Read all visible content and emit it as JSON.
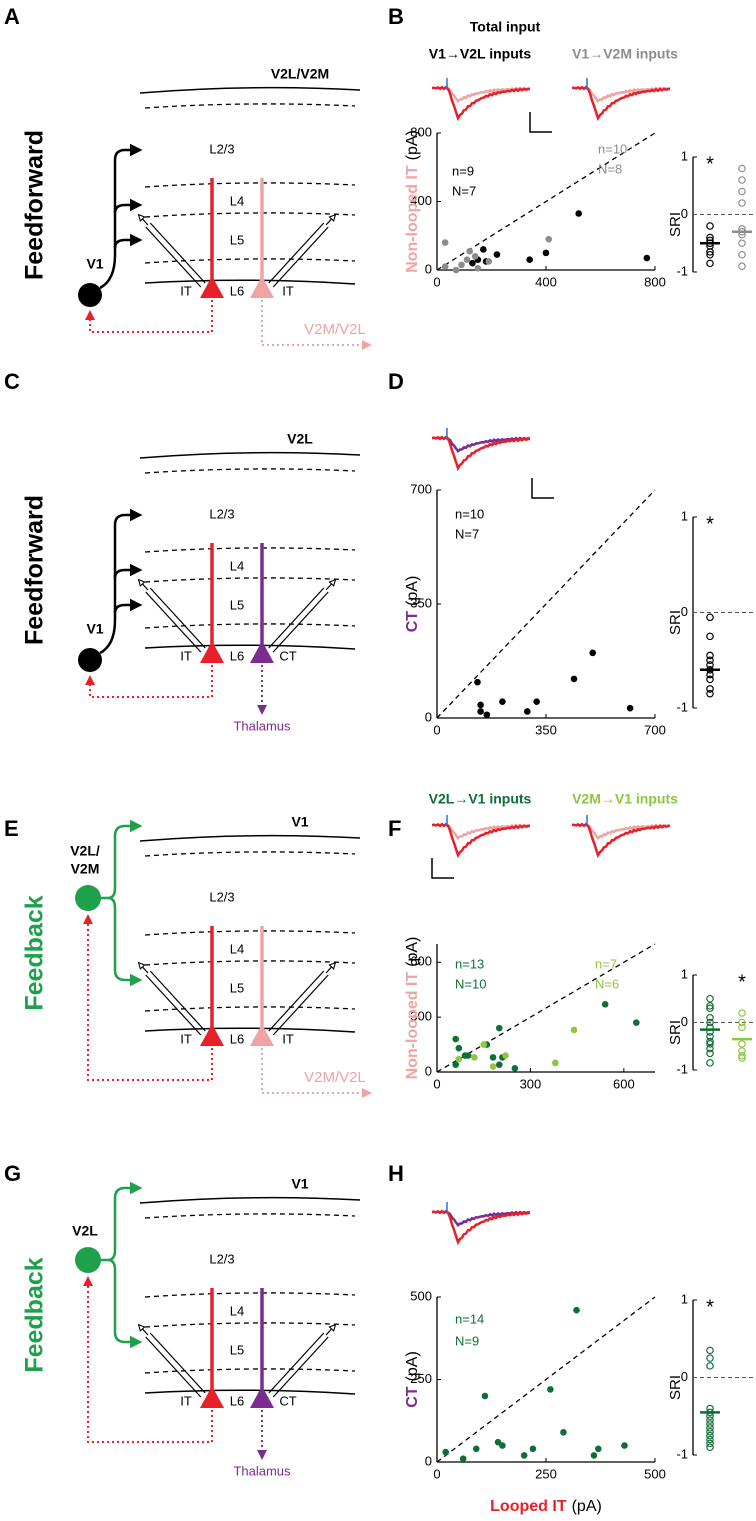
{
  "diagrams": [
    {
      "letter": "A",
      "mode": "Feedforward",
      "mode_color": "#000000",
      "area": "V2L/V2M",
      "source": [
        "V1"
      ],
      "source_color": "#000000",
      "layers": [
        "L2/3",
        "L4",
        "L5",
        "L6"
      ],
      "cells": [
        "IT",
        "IT"
      ],
      "cell_colors": [
        "#e8202a",
        "#f0a3a3"
      ],
      "target": "V2M/V2L",
      "target_route": "side"
    },
    {
      "letter": "C",
      "mode": "Feedforward",
      "mode_color": "#000000",
      "area": "V2L",
      "source": [
        "V1"
      ],
      "source_color": "#000000",
      "layers": [
        "L2/3",
        "L4",
        "L5",
        "L6"
      ],
      "cells": [
        "IT",
        "CT"
      ],
      "cell_colors": [
        "#e8202a",
        "#7b2c8f"
      ],
      "target": "Thalamus",
      "target_route": "down"
    },
    {
      "letter": "E",
      "mode": "Feedback",
      "mode_color": "#1fa04a",
      "area": "V1",
      "source": [
        "V2L/",
        "V2M"
      ],
      "source_color": "#1fa04a",
      "layers": [
        "L2/3",
        "L4",
        "L5",
        "L6"
      ],
      "cells": [
        "IT",
        "IT"
      ],
      "cell_colors": [
        "#e8202a",
        "#f0a3a3"
      ],
      "target": "V2M/V2L",
      "target_route": "side"
    },
    {
      "letter": "G",
      "mode": "Feedback",
      "mode_color": "#1fa04a",
      "area": "V1",
      "source": [
        "V2L"
      ],
      "source_color": "#1fa04a",
      "layers": [
        "L2/3",
        "L4",
        "L5",
        "L6"
      ],
      "cells": [
        "IT",
        "CT"
      ],
      "cell_colors": [
        "#e8202a",
        "#7b2c8f"
      ],
      "target": "Thalamus",
      "target_route": "down"
    }
  ],
  "chart_data": [
    {
      "type": "scatter",
      "letter": "B",
      "title": "Total input",
      "ylabel": "Non-looped IT",
      "ylabel_color": "#f0a3a3",
      "ylabel_unit": "(pA)",
      "xlim": [
        0,
        800
      ],
      "ylim": [
        0,
        800
      ],
      "xticks": [
        0,
        400,
        800
      ],
      "yticks": [
        0,
        400,
        800
      ],
      "series": [
        {
          "name": "V1→V2L inputs",
          "color": "#000000",
          "n_label": "n=9",
          "N_label": "N=7",
          "x": [
            130,
            150,
            170,
            180,
            220,
            340,
            400,
            520,
            770
          ],
          "values": [
            40,
            60,
            120,
            50,
            90,
            60,
            100,
            330,
            70
          ]
        },
        {
          "name": "V1→V2M inputs",
          "color": "#8c8c8c",
          "n_label": "n=10",
          "N_label": "N=8",
          "x": [
            30,
            30,
            70,
            90,
            110,
            120,
            140,
            150,
            190,
            410
          ],
          "values": [
            160,
            20,
            0,
            30,
            60,
            110,
            80,
            10,
            50,
            180
          ]
        }
      ],
      "sri": {
        "label": "SRI",
        "ylim": [
          -1,
          1
        ],
        "yticks": [
          -1,
          0,
          1
        ],
        "star": "*",
        "star_group": 0,
        "groups": [
          {
            "color": "#000000",
            "values": [
              -0.2,
              -0.4,
              -0.45,
              -0.5,
              -0.5,
              -0.55,
              -0.65,
              -0.7,
              -0.85
            ],
            "mean": -0.5
          },
          {
            "color": "#8c8c8c",
            "values": [
              0.8,
              0.6,
              0.4,
              0.2,
              -0.25,
              -0.3,
              -0.35,
              -0.5,
              -0.7,
              -0.9
            ],
            "mean": -0.3
          }
        ]
      }
    },
    {
      "type": "scatter",
      "letter": "D",
      "ylabel": "CT",
      "ylabel_color": "#7b2c8f",
      "ylabel_unit": "(pA)",
      "xlim": [
        0,
        700
      ],
      "ylim": [
        0,
        700
      ],
      "xticks": [
        0,
        350,
        700
      ],
      "yticks": [
        0,
        350,
        700
      ],
      "series": [
        {
          "color": "#000000",
          "n_label": "n=10",
          "N_label": "N=7",
          "x": [
            130,
            140,
            140,
            160,
            210,
            290,
            320,
            440,
            500,
            620
          ],
          "values": [
            110,
            40,
            20,
            10,
            50,
            20,
            50,
            120,
            200,
            30
          ]
        }
      ],
      "sri": {
        "label": "SRI",
        "ylim": [
          -1,
          1
        ],
        "yticks": [
          -1,
          0,
          1
        ],
        "star": "*",
        "star_group": 0,
        "groups": [
          {
            "color": "#000000",
            "values": [
              -0.05,
              -0.25,
              -0.45,
              -0.5,
              -0.55,
              -0.6,
              -0.65,
              -0.7,
              -0.8,
              -0.85
            ],
            "mean": -0.6
          }
        ]
      }
    },
    {
      "type": "scatter",
      "letter": "F",
      "ylabel": "Non-looped IT",
      "ylabel_color": "#f0a3a3",
      "ylabel_unit": "(pA)",
      "xlim": [
        0,
        700
      ],
      "ylim": [
        0,
        700
      ],
      "xticks": [
        0,
        300,
        600
      ],
      "yticks": [
        0,
        300,
        600
      ],
      "series": [
        {
          "name": "V2L→V1 inputs",
          "color": "#0f6e35",
          "n_label": "n=13",
          "N_label": "N=10",
          "x": [
            60,
            60,
            70,
            90,
            100,
            160,
            180,
            200,
            200,
            210,
            250,
            540,
            640
          ],
          "values": [
            180,
            40,
            130,
            90,
            90,
            150,
            80,
            40,
            240,
            80,
            20,
            370,
            270
          ]
        },
        {
          "name": "V2M→V1 inputs",
          "color": "#8dc63f",
          "n_label": "n=7",
          "N_label": "N=6",
          "x": [
            70,
            120,
            150,
            180,
            220,
            380,
            440
          ],
          "values": [
            70,
            80,
            150,
            30,
            90,
            50,
            230
          ]
        }
      ],
      "sri": {
        "label": "SRI",
        "ylim": [
          -1,
          1
        ],
        "yticks": [
          -1,
          0,
          1
        ],
        "star": "*",
        "star_group": 1,
        "groups": [
          {
            "color": "#0f6e35",
            "values": [
              0.5,
              0.35,
              0.3,
              0.1,
              0.0,
              -0.1,
              -0.2,
              -0.3,
              -0.4,
              -0.45,
              -0.55,
              -0.65,
              -0.85
            ],
            "mean": -0.15
          },
          {
            "color": "#8dc63f",
            "values": [
              0.2,
              0.0,
              -0.1,
              -0.45,
              -0.6,
              -0.7,
              -0.75
            ],
            "mean": -0.35
          }
        ]
      }
    },
    {
      "type": "scatter",
      "letter": "H",
      "ylabel": "CT",
      "ylabel_color": "#7b2c8f",
      "ylabel_unit": "(pA)",
      "xlabel": "Looped IT",
      "xlabel_color": "#e8202a",
      "xlabel_unit": "(pA)",
      "xlim": [
        0,
        500
      ],
      "ylim": [
        0,
        500
      ],
      "xticks": [
        0,
        250,
        500
      ],
      "yticks": [
        0,
        250,
        500
      ],
      "series": [
        {
          "color": "#0f6e35",
          "n_label": "n=14",
          "N_label": "N=9",
          "x": [
            20,
            60,
            90,
            110,
            140,
            150,
            200,
            220,
            260,
            290,
            320,
            360,
            370,
            430
          ],
          "values": [
            30,
            10,
            40,
            200,
            60,
            50,
            20,
            40,
            220,
            90,
            460,
            20,
            40,
            50
          ]
        }
      ],
      "sri": {
        "label": "SRI",
        "ylim": [
          -1,
          1
        ],
        "yticks": [
          -1,
          0,
          1
        ],
        "star": "*",
        "star_group": 0,
        "groups": [
          {
            "color": "#0f6e35",
            "values": [
              0.35,
              0.25,
              0.15,
              -0.4,
              -0.45,
              -0.5,
              -0.55,
              -0.6,
              -0.65,
              -0.7,
              -0.75,
              -0.8,
              -0.85,
              -0.9
            ],
            "mean": -0.45
          }
        ]
      }
    }
  ]
}
